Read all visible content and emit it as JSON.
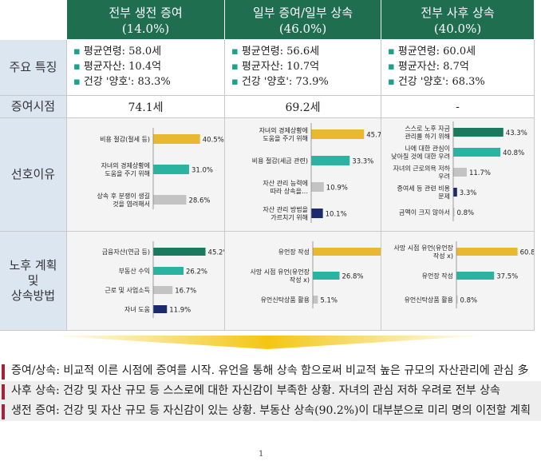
{
  "header": {
    "columns": [
      {
        "title": "전부 생전 증여",
        "pct": "(14.0%)"
      },
      {
        "title": "일부 증여/일부 상속",
        "pct": "(46.0%)"
      },
      {
        "title": "전부 사후 상속",
        "pct": "(40.0%)"
      }
    ]
  },
  "rows": {
    "features_label": "주요 특징",
    "age_label": "증여시점",
    "pref_label": "선호이유",
    "plan_label_1": "노후 계획",
    "plan_label_2": "및",
    "plan_label_3": "상속방법"
  },
  "features": [
    [
      "평균연령: 58.0세",
      "평균자산: 10.4억",
      "건강 '양호': 83.3%"
    ],
    [
      "평균연령: 56.6세",
      "평균자산: 10.7억",
      "건강 '양호': 73.9%"
    ],
    [
      "평균연령: 60.0세",
      "평균자산: 8.7억",
      "건강 '양호': 68.3%"
    ]
  ],
  "gift_age": [
    "74.1세",
    "69.2세",
    "-"
  ],
  "colors": {
    "yellow": "#e8b930",
    "teal": "#2bb3a1",
    "gray": "#c3c3c3",
    "navy": "#1a2a6c",
    "darkgreen": "#1b7a5e",
    "header": "#1f6e50",
    "accent": "#a3243a"
  },
  "chart_data": [
    {
      "type": "bar",
      "orientation": "horizontal",
      "xlim": [
        0,
        100
      ],
      "categories": [
        [
          "비용 절감(절세 등)"
        ],
        [
          "자녀의 경제상황에",
          "도움을 주기 위해"
        ],
        [
          "상속 후 분쟁이 생길",
          "것을 염려해서"
        ]
      ],
      "values": [
        40.5,
        31.0,
        28.6
      ],
      "labels": [
        "40.5%",
        "31.0%",
        "28.6%"
      ],
      "colors": [
        "yellow",
        "teal",
        "gray"
      ]
    },
    {
      "type": "bar",
      "orientation": "horizontal",
      "xlim": [
        0,
        100
      ],
      "categories": [
        [
          "자녀의 경제상황에",
          "도움을 주기 위해"
        ],
        [
          "비용 절감(세금 관련)"
        ],
        [
          "자산 관리 능력에",
          "따라 상속을…"
        ],
        [
          "자산 관리 방법을",
          "가르치기 위해"
        ]
      ],
      "values": [
        45.7,
        33.3,
        10.9,
        10.1
      ],
      "labels": [
        "45.7%",
        "33.3%",
        "10.9%",
        "10.1%"
      ],
      "colors": [
        "yellow",
        "teal",
        "gray",
        "navy"
      ]
    },
    {
      "type": "bar",
      "orientation": "horizontal",
      "xlim": [
        0,
        100
      ],
      "categories": [
        [
          "스스로 노후 자금",
          "관리를 하기 위해"
        ],
        [
          "나에 대한 관심이",
          "낮아질 것에 대한 우려"
        ],
        [
          "자녀의 근로의욕 저하",
          "우려"
        ],
        [
          "증여세 등 관련 비용",
          "문제"
        ],
        [
          "금액이 크지 않아서"
        ]
      ],
      "values": [
        43.3,
        40.8,
        11.7,
        3.3,
        0.8
      ],
      "labels": [
        "43.3%",
        "40.8%",
        "11.7%",
        "3.3%",
        "0.8%"
      ],
      "colors": [
        "darkgreen",
        "teal",
        "gray",
        "navy",
        "gray"
      ]
    },
    {
      "type": "bar",
      "orientation": "horizontal",
      "xlim": [
        0,
        100
      ],
      "categories": [
        [
          "금융자산(연금 등)"
        ],
        [
          "부동산 수익"
        ],
        [
          "근로 및 사업소득"
        ],
        [
          "자녀 도움"
        ]
      ],
      "values": [
        45.2,
        26.2,
        16.7,
        11.9
      ],
      "labels": [
        "45.2%",
        "26.2%",
        "16.7%",
        "11.9%"
      ],
      "colors": [
        "darkgreen",
        "teal",
        "gray",
        "navy"
      ]
    },
    {
      "type": "bar",
      "orientation": "horizontal",
      "xlim": [
        0,
        100
      ],
      "categories": [
        [
          "유언장 작성"
        ],
        [
          "사망 시점 유언(유언장",
          "작성 x)"
        ],
        [
          "유언신탁상품 활용"
        ]
      ],
      "values": [
        68.1,
        26.8,
        5.1
      ],
      "labels": [
        "68.1%",
        "26.8%",
        "5.1%"
      ],
      "colors": [
        "yellow",
        "teal",
        "gray"
      ]
    },
    {
      "type": "bar",
      "orientation": "horizontal",
      "xlim": [
        0,
        100
      ],
      "categories": [
        [
          "사망 시점 유언(유언장",
          "작성 x)"
        ],
        [
          "유언장 작성"
        ],
        [
          "유언신탁상품 활용"
        ]
      ],
      "values": [
        60.8,
        37.5,
        0.8
      ],
      "labels": [
        "60.8%",
        "37.5%",
        "0.8%"
      ],
      "colors": [
        "yellow",
        "teal",
        "gray"
      ]
    }
  ],
  "notes": [
    "증여/상속: 비교적 이른 시점에 증여를 시작. 유언을 통해 상속 함으로써 비교적 높은 규모의 자산관리에 관심 多",
    "사후 상속: 건강 및 자산 규모 등 스스로에 대한 자신감이 부족한 상황. 자녀의 관심 저하 우려로 전부 상속",
    "생전 증여: 건강 및 자산 규모 등 자신감이 있는 상황. 부동산 상속(90.2%)이 대부분으로 미리 명의 이전할 계획"
  ],
  "page_number": "1"
}
